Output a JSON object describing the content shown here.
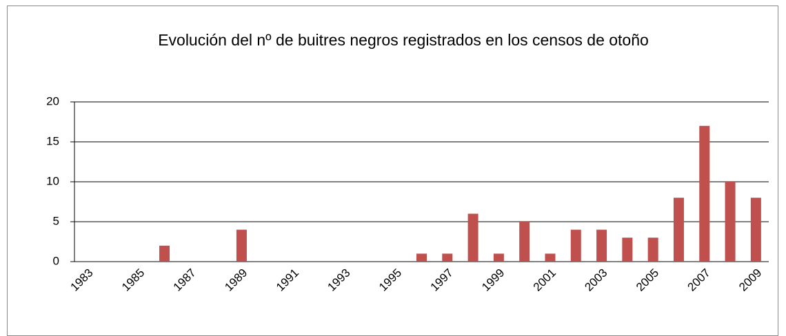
{
  "chart_data": {
    "type": "bar",
    "title": "Evolución del nº de buitres negros registrados en los censos de otoño",
    "categories": [
      "1983",
      null,
      "1985",
      null,
      "1987",
      null,
      "1989",
      null,
      "1991",
      null,
      "1993",
      null,
      "1995",
      null,
      "1997",
      null,
      "1999",
      null,
      "2001",
      null,
      "2003",
      null,
      "2005",
      null,
      "2007",
      null,
      "2009"
    ],
    "values": [
      0,
      0,
      0,
      2,
      0,
      0,
      4,
      0,
      0,
      0,
      0,
      0,
      0,
      1,
      1,
      6,
      1,
      5,
      1,
      4,
      4,
      3,
      3,
      8,
      17,
      10,
      8
    ],
    "color": "#c0504d",
    "ylim": [
      0,
      20
    ],
    "yticks": [
      0,
      5,
      10,
      15,
      20
    ],
    "grid": true
  }
}
